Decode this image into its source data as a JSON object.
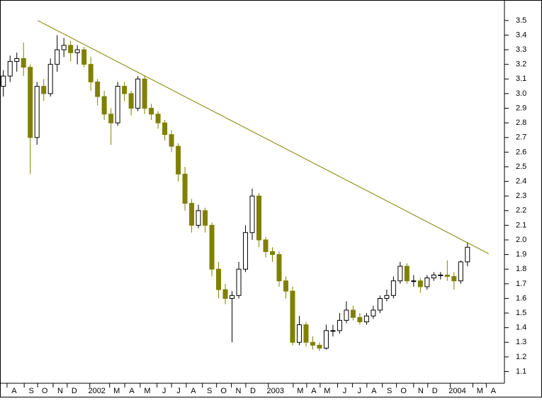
{
  "chart_data": {
    "type": "candlestick",
    "x": [
      1,
      3,
      5,
      7,
      9,
      11,
      13,
      15,
      17,
      19,
      21,
      23,
      25,
      27,
      29,
      31,
      33,
      35,
      37,
      39,
      41,
      43,
      45,
      47,
      49,
      51,
      53,
      55,
      57,
      59,
      61,
      63,
      65,
      67,
      69,
      71,
      73,
      75,
      77,
      79,
      81,
      83,
      85,
      87,
      89,
      91,
      93,
      95,
      97,
      99,
      101,
      103,
      105,
      107,
      109,
      111,
      113,
      115,
      117,
      119,
      121,
      123,
      125,
      127,
      129,
      131,
      133,
      135,
      137,
      139
    ],
    "open": [
      3.05,
      3.12,
      3.22,
      3.24,
      3.18,
      2.7,
      3.05,
      3.0,
      3.2,
      3.3,
      3.33,
      3.28,
      3.3,
      3.2,
      3.08,
      2.98,
      2.86,
      2.8,
      3.05,
      3.0,
      2.9,
      3.1,
      2.9,
      2.86,
      2.8,
      2.72,
      2.64,
      2.45,
      2.25,
      2.1,
      2.2,
      2.1,
      1.8,
      1.66,
      1.6,
      1.62,
      1.8,
      2.05,
      2.3,
      2.0,
      1.92,
      1.9,
      1.72,
      1.65,
      1.3,
      1.42,
      1.3,
      1.28,
      1.26,
      1.38,
      1.38,
      1.45,
      1.52,
      1.47,
      1.44,
      1.48,
      1.52,
      1.6,
      1.62,
      1.72,
      1.82,
      1.72,
      1.72,
      1.68,
      1.74,
      1.76,
      1.76,
      1.75,
      1.72,
      1.85
    ],
    "high": [
      3.16,
      3.26,
      3.28,
      3.35,
      3.2,
      3.08,
      3.1,
      3.24,
      3.4,
      3.38,
      3.36,
      3.33,
      3.32,
      3.25,
      3.1,
      3.02,
      2.9,
      3.08,
      3.08,
      3.02,
      3.12,
      3.12,
      2.93,
      2.88,
      2.82,
      2.75,
      2.66,
      2.5,
      2.28,
      2.24,
      2.22,
      2.12,
      1.85,
      1.7,
      1.65,
      1.85,
      2.1,
      2.35,
      2.32,
      2.02,
      1.95,
      1.92,
      1.75,
      1.68,
      1.48,
      1.44,
      1.34,
      1.3,
      1.42,
      1.42,
      1.5,
      1.58,
      1.55,
      1.5,
      1.5,
      1.55,
      1.62,
      1.66,
      1.75,
      1.85,
      1.84,
      1.76,
      1.74,
      1.76,
      1.78,
      1.78,
      1.86,
      1.78,
      1.86,
      1.98
    ],
    "low": [
      2.98,
      3.08,
      3.15,
      3.12,
      2.45,
      2.65,
      2.95,
      2.98,
      3.15,
      3.25,
      3.22,
      3.2,
      3.18,
      3.02,
      2.92,
      2.82,
      2.65,
      2.78,
      2.95,
      2.85,
      2.88,
      2.86,
      2.82,
      2.76,
      2.68,
      2.6,
      2.4,
      2.2,
      2.05,
      2.08,
      2.05,
      1.75,
      1.6,
      1.56,
      1.3,
      1.6,
      1.78,
      2.0,
      1.95,
      1.88,
      1.85,
      1.68,
      1.6,
      1.28,
      1.28,
      1.27,
      1.25,
      1.24,
      1.25,
      1.34,
      1.36,
      1.43,
      1.45,
      1.42,
      1.42,
      1.46,
      1.5,
      1.58,
      1.6,
      1.7,
      1.7,
      1.68,
      1.64,
      1.66,
      1.72,
      1.73,
      1.72,
      1.66,
      1.7,
      1.82
    ],
    "close": [
      3.12,
      3.22,
      3.24,
      3.18,
      2.7,
      3.05,
      3.0,
      3.2,
      3.3,
      3.33,
      3.28,
      3.3,
      3.2,
      3.08,
      2.98,
      2.86,
      2.8,
      3.05,
      3.0,
      2.9,
      3.1,
      2.9,
      2.86,
      2.8,
      2.72,
      2.64,
      2.45,
      2.25,
      2.1,
      2.2,
      2.1,
      1.8,
      1.66,
      1.6,
      1.62,
      1.8,
      2.05,
      2.3,
      2.0,
      1.92,
      1.9,
      1.72,
      1.65,
      1.3,
      1.42,
      1.3,
      1.28,
      1.26,
      1.38,
      1.38,
      1.45,
      1.52,
      1.47,
      1.44,
      1.48,
      1.52,
      1.6,
      1.62,
      1.72,
      1.82,
      1.72,
      1.72,
      1.68,
      1.74,
      1.76,
      1.76,
      1.75,
      1.72,
      1.85,
      1.95
    ],
    "up_color": "#ffffff",
    "down_color": "#808000",
    "trendline": {
      "x": [
        11.2,
        145.3
      ],
      "y": [
        3.5,
        1.906
      ],
      "color": "#808000"
    },
    "xlim": [
      0,
      150
    ],
    "xticks": [
      {
        "value": 4.2,
        "label": "A"
      },
      {
        "value": 9.3,
        "label": "S"
      },
      {
        "value": 13.3,
        "label": "O"
      },
      {
        "value": 17.9,
        "label": "N"
      },
      {
        "value": 22.1,
        "label": "D"
      },
      {
        "value": 28.8,
        "label": "2002"
      },
      {
        "value": 34.7,
        "label": "M"
      },
      {
        "value": 39.2,
        "label": "A"
      },
      {
        "value": 43.8,
        "label": "M"
      },
      {
        "value": 48.8,
        "label": "J"
      },
      {
        "value": 53.1,
        "label": "J"
      },
      {
        "value": 57.5,
        "label": "A"
      },
      {
        "value": 62.3,
        "label": "S"
      },
      {
        "value": 66.5,
        "label": "O"
      },
      {
        "value": 70.9,
        "label": "N"
      },
      {
        "value": 75.2,
        "label": "D"
      },
      {
        "value": 81.9,
        "label": "2003"
      },
      {
        "value": 89.3,
        "label": "M"
      },
      {
        "value": 93.3,
        "label": "A"
      },
      {
        "value": 97.3,
        "label": "M"
      },
      {
        "value": 102.5,
        "label": "J"
      },
      {
        "value": 106.9,
        "label": "J"
      },
      {
        "value": 111.2,
        "label": "A"
      },
      {
        "value": 115.8,
        "label": "S"
      },
      {
        "value": 120,
        "label": "O"
      },
      {
        "value": 125.1,
        "label": "N"
      },
      {
        "value": 129.3,
        "label": "D"
      },
      {
        "value": 136,
        "label": "2004"
      },
      {
        "value": 142.7,
        "label": "M"
      },
      {
        "value": 146.7,
        "label": "A"
      }
    ],
    "ylim": [
      1.02,
      3.64
    ],
    "yticks": [
      1.1,
      1.2,
      1.3,
      1.4,
      1.5,
      1.6,
      1.7,
      1.8,
      1.9,
      {
        "value": 2,
        "label": "2.0"
      },
      2.1,
      2.2,
      2.3,
      2.4,
      2.5,
      2.6,
      2.7,
      2.8,
      2.9,
      {
        "value": 3,
        "label": "3.0"
      },
      3.1,
      3.2,
      3.3,
      3.4,
      3.5
    ]
  }
}
